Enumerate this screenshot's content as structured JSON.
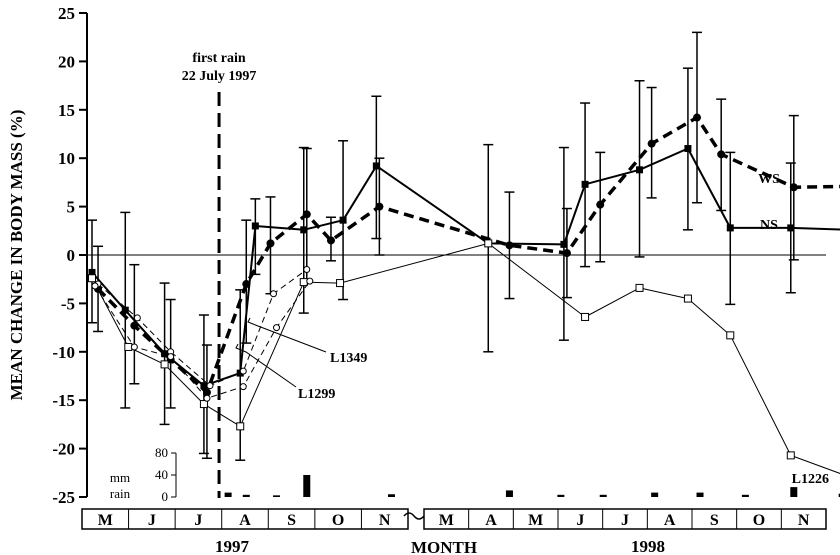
{
  "chart_data": {
    "type": "line",
    "ylabel": "MEAN CHANGE IN BODY MASS (%)",
    "xlabel": "MONTH",
    "ylim": [
      -25,
      25
    ],
    "yticks": [
      "25",
      "20",
      "15",
      "10",
      "5",
      "0",
      "-5",
      "-10",
      "-15",
      "-20",
      "-25"
    ],
    "months_1997": [
      "M",
      "J",
      "J",
      "A",
      "S",
      "O",
      "N"
    ],
    "months_1998": [
      "M",
      "A",
      "M",
      "J",
      "J",
      "A",
      "S",
      "O",
      "N"
    ],
    "year_labels": [
      "1997",
      "1998"
    ],
    "annotation": {
      "line1": "first rain",
      "line2": "22 July 1997"
    },
    "series": [
      {
        "name": "NS",
        "values": [
          {
            "x": 0.0,
            "y": -1.8,
            "lo": -7.0,
            "hi": 3.6
          },
          {
            "x": 0.55,
            "y": -5.7,
            "lo": -15.8,
            "hi": 4.4
          },
          {
            "x": 1.2,
            "y": -10.2,
            "lo": -17.5,
            "hi": -2.9
          },
          {
            "x": 1.85,
            "y": -13.5,
            "lo": -20.5,
            "hi": -6.2
          },
          {
            "x": 2.45,
            "y": -12.2,
            "lo": -21.2,
            "hi": -3.6
          },
          {
            "x": 2.7,
            "y": 3.0,
            "lo": -2.0,
            "hi": 5.8
          },
          {
            "x": 3.5,
            "y": 2.6,
            "lo": -6.0,
            "hi": 11.1
          },
          {
            "x": 4.15,
            "y": 3.6,
            "lo": -4.6,
            "hi": 11.8
          },
          {
            "x": 4.7,
            "y": 9.2,
            "lo": 1.7,
            "hi": 16.4
          },
          {
            "x": 6.55,
            "y": 1.2,
            "lo": -10.0,
            "hi": 11.4
          },
          {
            "x": 7.8,
            "y": 1.1,
            "lo": -8.8,
            "hi": 11.1
          },
          {
            "x": 8.15,
            "y": 7.3,
            "lo": -1.2,
            "hi": 15.7
          },
          {
            "x": 9.05,
            "y": 8.8,
            "lo": -0.2,
            "hi": 18.0
          },
          {
            "x": 9.85,
            "y": 11.0,
            "lo": 2.6,
            "hi": 19.3
          },
          {
            "x": 10.55,
            "y": 2.8,
            "lo": -5.1,
            "hi": 10.6
          },
          {
            "x": 11.55,
            "y": 2.8,
            "lo": -3.9,
            "hi": 9.5
          },
          {
            "x": 12.55,
            "y": 2.6
          }
        ]
      },
      {
        "name": "WS",
        "values": [
          {
            "x": 0.1,
            "y": -3.5,
            "lo": -7.9,
            "hi": 0.9
          },
          {
            "x": 0.7,
            "y": -7.3,
            "lo": -13.3,
            "hi": -1.0
          },
          {
            "x": 1.3,
            "y": -10.8,
            "lo": -15.8,
            "hi": -4.6
          },
          {
            "x": 1.9,
            "y": -14.2,
            "lo": -21.0,
            "hi": -9.3
          },
          {
            "x": 2.55,
            "y": -3.0,
            "lo": -9.1,
            "hi": 3.6
          },
          {
            "x": 2.95,
            "y": 1.2,
            "lo": -4.0,
            "hi": 6.0
          },
          {
            "x": 3.55,
            "y": 4.2,
            "lo": -2.9,
            "hi": 11.0
          },
          {
            "x": 3.95,
            "y": 1.5,
            "lo": -0.6,
            "hi": 3.9
          },
          {
            "x": 4.75,
            "y": 5.0,
            "lo": 0.0,
            "hi": 10.0
          },
          {
            "x": 6.9,
            "y": 1.0,
            "lo": -4.5,
            "hi": 6.5
          },
          {
            "x": 7.85,
            "y": 0.2,
            "lo": -4.4,
            "hi": 4.8
          },
          {
            "x": 8.4,
            "y": 5.2,
            "lo": -0.7,
            "hi": 10.6
          },
          {
            "x": 9.25,
            "y": 11.5,
            "lo": 5.9,
            "hi": 17.3
          },
          {
            "x": 10.0,
            "y": 14.2,
            "lo": 5.4,
            "hi": 23.0
          },
          {
            "x": 10.4,
            "y": 10.4,
            "lo": 4.6,
            "hi": 16.1
          },
          {
            "x": 11.6,
            "y": 7.0,
            "lo": -0.5,
            "hi": 14.4
          },
          {
            "x": 12.55,
            "y": 7.1,
            "lo": 1.4,
            "hi": 12.5
          }
        ]
      },
      {
        "name": "L1226",
        "values": [
          {
            "x": 0.0,
            "y": -2.4
          },
          {
            "x": 0.6,
            "y": -9.5
          },
          {
            "x": 1.2,
            "y": -11.3
          },
          {
            "x": 1.85,
            "y": -15.4
          },
          {
            "x": 2.45,
            "y": -17.7
          },
          {
            "x": 3.5,
            "y": -2.8
          },
          {
            "x": 4.1,
            "y": -2.9
          },
          {
            "x": 6.55,
            "y": 1.2
          },
          {
            "x": 8.15,
            "y": -6.4
          },
          {
            "x": 9.05,
            "y": -3.4
          },
          {
            "x": 9.85,
            "y": -4.5
          },
          {
            "x": 10.55,
            "y": -8.3
          },
          {
            "x": 11.55,
            "y": -20.7
          },
          {
            "x": 12.55,
            "y": -23.0
          }
        ]
      },
      {
        "name": "L1349",
        "values": [
          {
            "x": 0.1,
            "y": -3.0
          },
          {
            "x": 0.75,
            "y": -6.5
          },
          {
            "x": 1.3,
            "y": -10.0
          },
          {
            "x": 1.95,
            "y": -13.5
          },
          {
            "x": 2.5,
            "y": -12.0
          },
          {
            "x": 3.0,
            "y": -4.0
          },
          {
            "x": 3.55,
            "y": -1.5
          }
        ]
      },
      {
        "name": "L1299",
        "values": [
          {
            "x": 0.05,
            "y": -3.2
          },
          {
            "x": 0.7,
            "y": -9.5
          },
          {
            "x": 1.3,
            "y": -10.5
          },
          {
            "x": 1.9,
            "y": -14.8
          },
          {
            "x": 2.5,
            "y": -13.6
          },
          {
            "x": 3.05,
            "y": -7.5
          },
          {
            "x": 3.6,
            "y": -2.7
          }
        ]
      }
    ],
    "rain": {
      "ylabel_line1": "mm",
      "ylabel_line2": "rain",
      "ylim": [
        0,
        80
      ],
      "ticks": [
        "80",
        "40",
        "0"
      ],
      "bars": [
        {
          "x": 2.25,
          "mm": 8
        },
        {
          "x": 2.55,
          "mm": 4
        },
        {
          "x": 3.05,
          "mm": 3
        },
        {
          "x": 3.55,
          "mm": 40
        },
        {
          "x": 4.95,
          "mm": 5
        },
        {
          "x": 6.9,
          "mm": 12
        },
        {
          "x": 7.75,
          "mm": 4
        },
        {
          "x": 8.45,
          "mm": 4
        },
        {
          "x": 9.3,
          "mm": 8
        },
        {
          "x": 10.05,
          "mm": 8
        },
        {
          "x": 10.8,
          "mm": 4
        },
        {
          "x": 11.6,
          "mm": 18
        },
        {
          "x": 12.4,
          "mm": 6
        },
        {
          "x": 13.0,
          "mm": 4
        }
      ]
    }
  }
}
